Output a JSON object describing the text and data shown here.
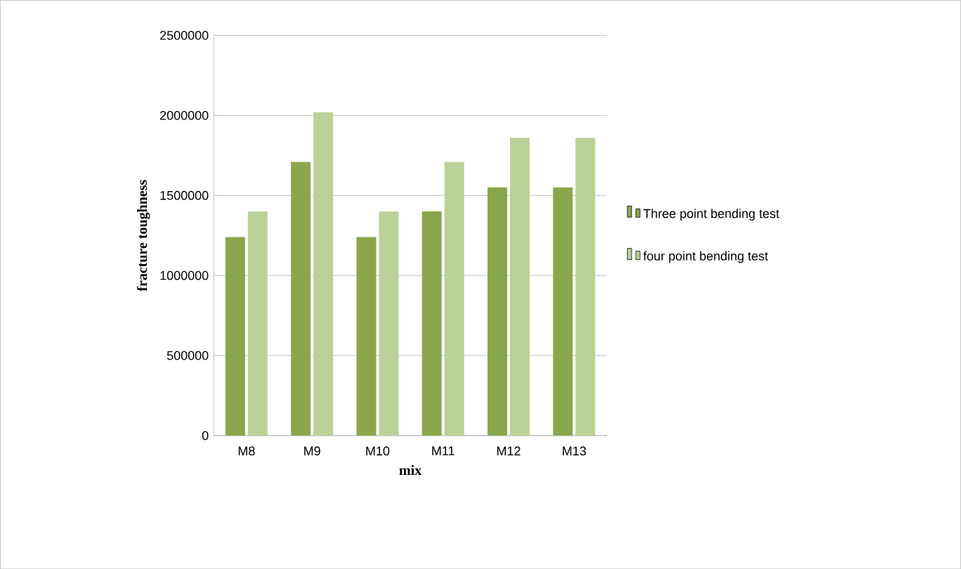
{
  "chart_data": {
    "type": "bar",
    "xlabel": "mix",
    "ylabel": "fracture toughness",
    "categories": [
      "M8",
      "M9",
      "M10",
      "M11",
      "M12",
      "M13"
    ],
    "series": [
      {
        "name": "Three point bending test",
        "color": "#8aa64c",
        "values": [
          1240000,
          1710000,
          1240000,
          1400000,
          1550000,
          1550000
        ]
      },
      {
        "name": "four point bending test",
        "color": "#bbd197",
        "values": [
          1400000,
          2020000,
          1400000,
          1710000,
          1860000,
          1860000
        ]
      }
    ],
    "ylim": [
      0,
      2500000
    ],
    "yticks": [
      0,
      500000,
      1000000,
      1500000,
      2000000,
      2500000
    ],
    "grid": "y",
    "legend": "right"
  }
}
